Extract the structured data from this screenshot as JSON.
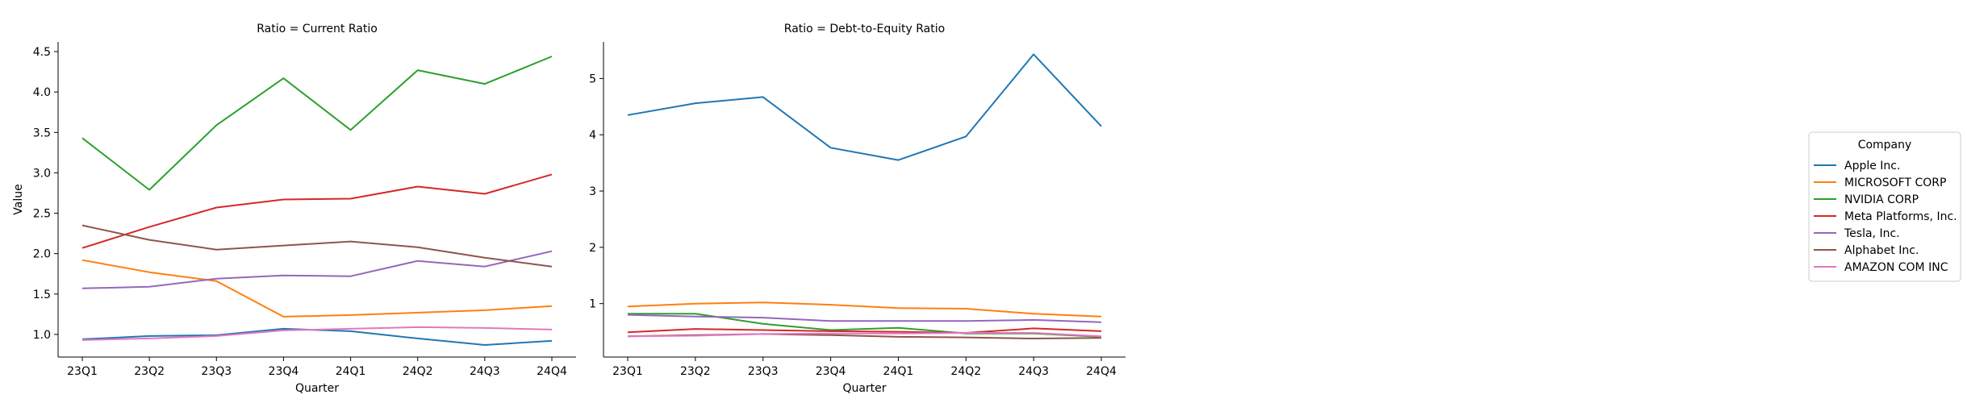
{
  "chart_data": [
    {
      "type": "line",
      "title": "Ratio = Current Ratio",
      "xlabel": "Quarter",
      "ylabel": "Value",
      "categories": [
        "23Q1",
        "23Q2",
        "23Q3",
        "23Q4",
        "24Q1",
        "24Q2",
        "24Q3",
        "24Q4"
      ],
      "ylim": [
        0.72,
        4.62
      ],
      "yticks": [
        1.0,
        1.5,
        2.0,
        2.5,
        3.0,
        3.5,
        4.0,
        4.5
      ],
      "ytick_labels": [
        "1.0",
        "1.5",
        "2.0",
        "2.5",
        "3.0",
        "3.5",
        "4.0",
        "4.5"
      ],
      "grid": false,
      "series": [
        {
          "name": "Apple Inc.",
          "values": [
            0.94,
            0.98,
            0.99,
            1.07,
            1.04,
            0.95,
            0.87,
            0.92
          ]
        },
        {
          "name": "MICROSOFT CORP",
          "values": [
            1.92,
            1.77,
            1.66,
            1.22,
            1.24,
            1.27,
            1.3,
            1.35
          ]
        },
        {
          "name": "NVIDIA CORP",
          "values": [
            3.43,
            2.79,
            3.59,
            4.17,
            3.53,
            4.27,
            4.1,
            4.44
          ]
        },
        {
          "name": "Meta Platforms, Inc.",
          "values": [
            2.07,
            2.33,
            2.57,
            2.67,
            2.68,
            2.83,
            2.74,
            2.98
          ]
        },
        {
          "name": "Tesla, Inc.",
          "values": [
            1.57,
            1.59,
            1.69,
            1.73,
            1.72,
            1.91,
            1.84,
            2.03
          ]
        },
        {
          "name": "Alphabet Inc.",
          "values": [
            2.35,
            2.17,
            2.05,
            2.1,
            2.15,
            2.08,
            1.95,
            1.84
          ]
        },
        {
          "name": "AMAZON COM INC",
          "values": [
            0.93,
            0.95,
            0.98,
            1.05,
            1.07,
            1.09,
            1.08,
            1.06
          ]
        }
      ]
    },
    {
      "type": "line",
      "title": "Ratio = Debt-to-Equity Ratio",
      "xlabel": "Quarter",
      "ylabel": "",
      "categories": [
        "23Q1",
        "23Q2",
        "23Q3",
        "23Q4",
        "24Q1",
        "24Q2",
        "24Q3",
        "24Q4"
      ],
      "ylim": [
        0.05,
        5.65
      ],
      "yticks": [
        1,
        2,
        3,
        4,
        5
      ],
      "ytick_labels": [
        "1",
        "2",
        "3",
        "4",
        "5"
      ],
      "grid": false,
      "series": [
        {
          "name": "Apple Inc.",
          "values": [
            4.35,
            4.56,
            4.67,
            3.77,
            3.55,
            3.97,
            5.43,
            4.15
          ]
        },
        {
          "name": "MICROSOFT CORP",
          "values": [
            0.95,
            1.0,
            1.02,
            0.98,
            0.92,
            0.91,
            0.82,
            0.77
          ]
        },
        {
          "name": "NVIDIA CORP",
          "values": [
            0.82,
            0.82,
            0.64,
            0.53,
            0.57,
            0.47,
            0.47,
            0.41
          ]
        },
        {
          "name": "Meta Platforms, Inc.",
          "values": [
            0.49,
            0.55,
            0.53,
            0.51,
            0.5,
            0.48,
            0.56,
            0.51
          ]
        },
        {
          "name": "Tesla, Inc.",
          "values": [
            0.8,
            0.77,
            0.75,
            0.69,
            0.69,
            0.69,
            0.71,
            0.67
          ]
        },
        {
          "name": "Alphabet Inc.",
          "values": [
            0.42,
            0.44,
            0.46,
            0.44,
            0.41,
            0.4,
            0.38,
            0.39
          ]
        },
        {
          "name": "AMAZON COM INC",
          "values": [
            0.42,
            0.43,
            0.46,
            0.47,
            0.47,
            0.48,
            0.48,
            0.42
          ]
        }
      ]
    }
  ],
  "legend": {
    "title": "Company",
    "placement": "right",
    "entries": [
      "Apple Inc.",
      "MICROSOFT CORP",
      "NVIDIA CORP",
      "Meta Platforms, Inc.",
      "Tesla, Inc.",
      "Alphabet Inc.",
      "AMAZON COM INC"
    ]
  },
  "colors": {
    "Apple Inc.": "#1f77b4",
    "MICROSOFT CORP": "#ff7f0e",
    "NVIDIA CORP": "#2ca02c",
    "Meta Platforms, Inc.": "#d62728",
    "Tesla, Inc.": "#9467bd",
    "Alphabet Inc.": "#8c564b",
    "AMAZON COM INC": "#e377c2"
  }
}
